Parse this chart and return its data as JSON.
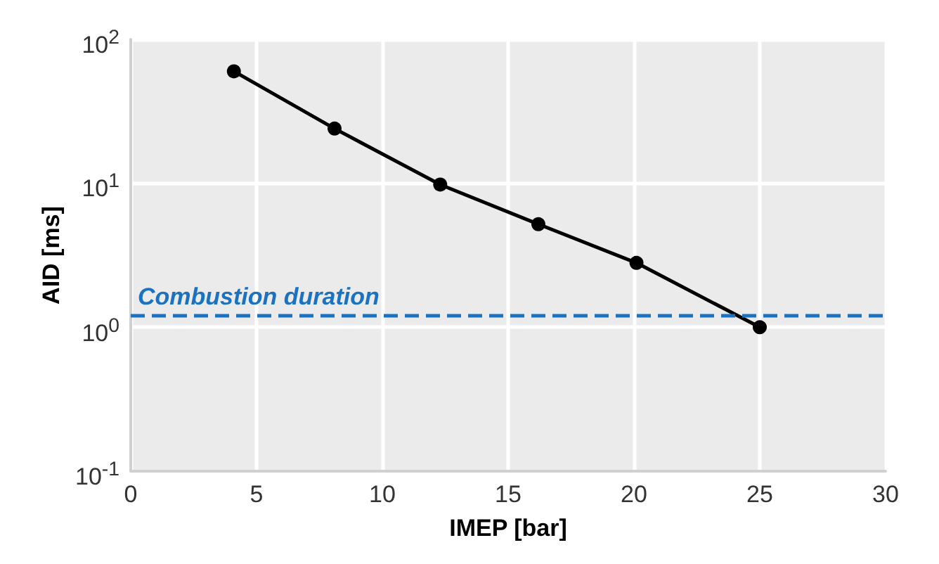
{
  "chart_data": {
    "type": "line",
    "xlabel": "IMEP [bar]",
    "ylabel": "AID [ms]",
    "x": [
      4.1,
      8.1,
      12.3,
      16.2,
      20.1,
      25.0
    ],
    "series": [
      {
        "color": "#000000",
        "values": [
          60,
          24,
          9.8,
          5.2,
          2.8,
          1.0
        ]
      }
    ],
    "xlim": [
      0,
      30
    ],
    "xticks": [
      0,
      5,
      10,
      15,
      20,
      25,
      30
    ],
    "ylim": [
      0.1,
      100
    ],
    "yticks": [
      {
        "value": 0.1,
        "label": "10$^{-1}$"
      },
      {
        "value": 1,
        "label": "10$^{0}$"
      },
      {
        "value": 10,
        "label": "10$^{1}$"
      },
      {
        "value": 100,
        "label": "10$^{2}$"
      }
    ],
    "log": "y",
    "grid": true,
    "marker": "circle",
    "line_style": "solid",
    "ref_lines": [
      {
        "axis": "y",
        "value": 1.2,
        "label": "Combustion duration",
        "color": "#1a72c0",
        "line_style": "dashed"
      }
    ]
  }
}
